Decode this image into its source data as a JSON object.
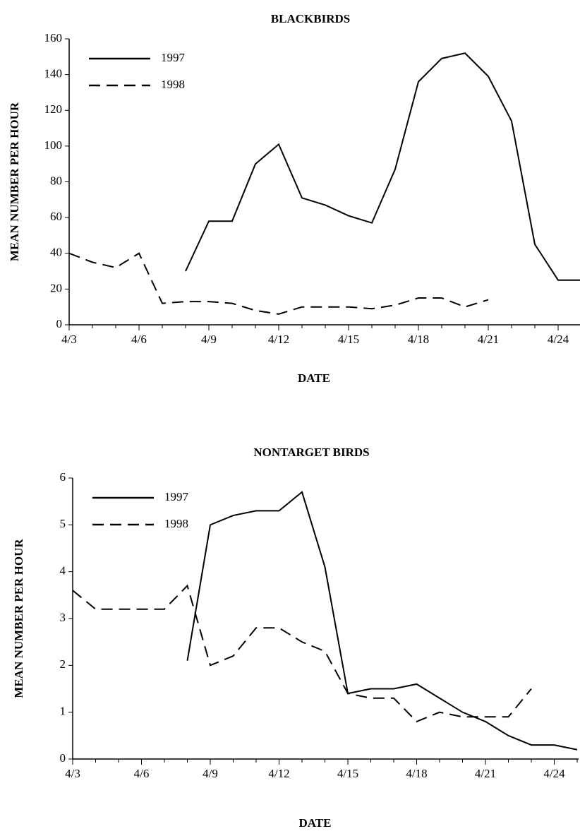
{
  "chart_data": [
    {
      "type": "line",
      "title": "BLACKBIRDS",
      "x_label": "DATE",
      "y_label": "MEAN NUMBER PER HOUR",
      "categories": [
        "4/3",
        null,
        null,
        "4/6",
        null,
        null,
        "4/9",
        null,
        null,
        "4/12",
        null,
        null,
        "4/15",
        null,
        null,
        "4/18",
        null,
        null,
        "4/21",
        null,
        null,
        "4/24",
        null
      ],
      "ylim": [
        0,
        160
      ],
      "yticks": [
        0,
        20,
        40,
        60,
        80,
        100,
        120,
        140,
        160
      ],
      "legend": "top-left",
      "series": [
        {
          "name": "1997",
          "color": "#000000",
          "line_style": "solid",
          "values": [
            null,
            null,
            null,
            null,
            null,
            30,
            58,
            58,
            90,
            101,
            71,
            67,
            61,
            57,
            87,
            136,
            149,
            152,
            139,
            114,
            45,
            25,
            25
          ]
        },
        {
          "name": "1998",
          "color": "#000000",
          "line_style": "dashed",
          "values": [
            40,
            35,
            32,
            40,
            12,
            13,
            13,
            12,
            8,
            6,
            10,
            10,
            10,
            9,
            11,
            15,
            15,
            10,
            14,
            null,
            null,
            null,
            null
          ]
        }
      ]
    },
    {
      "type": "line",
      "title": "NONTARGET BIRDS",
      "x_label": "DATE",
      "y_label": "MEAN NUMBER PER HOUR",
      "categories": [
        "4/3",
        null,
        null,
        "4/6",
        null,
        null,
        "4/9",
        null,
        null,
        "4/12",
        null,
        null,
        "4/15",
        null,
        null,
        "4/18",
        null,
        null,
        "4/21",
        null,
        null,
        "4/24",
        null
      ],
      "ylim": [
        0,
        6
      ],
      "yticks": [
        0,
        1,
        2,
        3,
        4,
        5,
        6
      ],
      "legend": "top-left",
      "series": [
        {
          "name": "1997",
          "color": "#000000",
          "line_style": "solid",
          "values": [
            null,
            null,
            null,
            null,
            null,
            2.1,
            5.0,
            5.2,
            5.3,
            5.3,
            5.7,
            4.1,
            1.4,
            1.5,
            1.5,
            1.6,
            1.3,
            1.0,
            0.8,
            0.5,
            0.3,
            0.3,
            0.2
          ]
        },
        {
          "name": "1998",
          "color": "#000000",
          "line_style": "dashed",
          "values": [
            3.6,
            3.2,
            3.2,
            3.2,
            3.2,
            3.7,
            2.0,
            2.2,
            2.8,
            2.8,
            2.5,
            2.3,
            1.4,
            1.3,
            1.3,
            0.8,
            1.0,
            0.9,
            0.9,
            0.9,
            1.5,
            null,
            null
          ]
        }
      ]
    }
  ]
}
